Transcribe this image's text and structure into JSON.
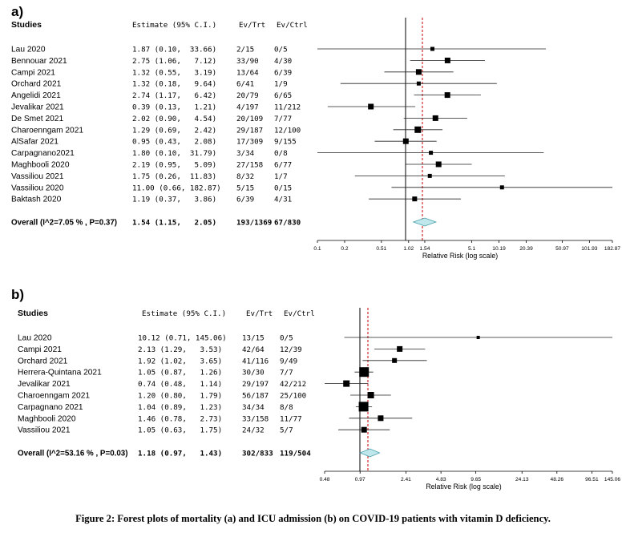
{
  "caption": "Figure 2: Forest plots of mortality (a) and ICU admission (b) on COVID-19 patients with vitamin D deficiency.",
  "chart_data": [
    {
      "type": "forest",
      "panel": "a)",
      "header": {
        "studies": "Studies",
        "estimate": "Estimate (95% C.I.)",
        "ev_trt": "Ev/Trt",
        "ev_ctrl": "Ev/Ctrl"
      },
      "xlabel": "Relative Risk (log scale)",
      "xscale": "log",
      "xlim": [
        0.1,
        182.87
      ],
      "ticks": [
        "0.1",
        "0.2",
        "0.51",
        "1.02",
        "1.54",
        "5.1",
        "10.19",
        "20.39",
        "50.97",
        "101.93",
        "182.87"
      ],
      "reference_line": 1,
      "pooled_line": 1.54,
      "studies": [
        {
          "name": "Lau 2020",
          "rr": 1.87,
          "lo": 0.1,
          "hi": 33.66,
          "ci_text": "1.87 (0.10,  33.66)",
          "ev_trt": "2/15",
          "ev_ctrl": "0/5",
          "box": 5
        },
        {
          "name": "Bennouar 2021",
          "rr": 2.75,
          "lo": 1.06,
          "hi": 7.12,
          "ci_text": "2.75 (1.06,   7.12)",
          "ev_trt": "33/90",
          "ev_ctrl": "4/30",
          "box": 7
        },
        {
          "name": "Campi 2021",
          "rr": 1.32,
          "lo": 0.55,
          "hi": 3.19,
          "ci_text": "1.32 (0.55,   3.19)",
          "ev_trt": "13/64",
          "ev_ctrl": "6/39",
          "box": 7
        },
        {
          "name": "Orchard 2021",
          "rr": 1.32,
          "lo": 0.18,
          "hi": 9.64,
          "ci_text": "1.32 (0.18,   9.64)",
          "ev_trt": "6/41",
          "ev_ctrl": "1/9",
          "box": 5
        },
        {
          "name": "Angelidi 2021",
          "rr": 2.74,
          "lo": 1.17,
          "hi": 6.42,
          "ci_text": "2.74 (1.17,   6.42)",
          "ev_trt": "20/79",
          "ev_ctrl": "6/65",
          "box": 7
        },
        {
          "name": "Jevalikar 2021",
          "rr": 0.39,
          "lo": 0.13,
          "hi": 1.21,
          "ci_text": "0.39 (0.13,   1.21)",
          "ev_trt": "4/197",
          "ev_ctrl": "11/212",
          "box": 7
        },
        {
          "name": "De Smet 2021",
          "rr": 2.02,
          "lo": 0.9,
          "hi": 4.54,
          "ci_text": "2.02 (0.90,   4.54)",
          "ev_trt": "20/109",
          "ev_ctrl": "7/77",
          "box": 7
        },
        {
          "name": "Charoenngam 2021",
          "rr": 1.29,
          "lo": 0.69,
          "hi": 2.42,
          "ci_text": "1.29 (0.69,   2.42)",
          "ev_trt": "29/187",
          "ev_ctrl": "12/100",
          "box": 8
        },
        {
          "name": "AlSafar 2021",
          "rr": 0.95,
          "lo": 0.43,
          "hi": 2.08,
          "ci_text": "0.95 (0.43,   2.08)",
          "ev_trt": "17/309",
          "ev_ctrl": "9/155",
          "box": 7
        },
        {
          "name": "Carpagnano2021",
          "rr": 1.8,
          "lo": 0.1,
          "hi": 31.79,
          "ci_text": "1.80 (0.10,  31.79)",
          "ev_trt": "3/34",
          "ev_ctrl": "0/8",
          "box": 5
        },
        {
          "name": "Maghbooli 2020",
          "rr": 2.19,
          "lo": 0.95,
          "hi": 5.09,
          "ci_text": "2.19 (0.95,   5.09)",
          "ev_trt": "27/158",
          "ev_ctrl": "6/77",
          "box": 7
        },
        {
          "name": "Vassiliou 2021",
          "rr": 1.75,
          "lo": 0.26,
          "hi": 11.83,
          "ci_text": "1.75 (0.26,  11.83)",
          "ev_trt": "8/32",
          "ev_ctrl": "1/7",
          "box": 5
        },
        {
          "name": "Vassiliou 2020",
          "rr": 11.0,
          "lo": 0.66,
          "hi": 182.87,
          "ci_text": "11.00 (0.66, 182.87)",
          "ev_trt": "5/15",
          "ev_ctrl": "0/15",
          "box": 5
        },
        {
          "name": "Baktash 2020",
          "rr": 1.19,
          "lo": 0.37,
          "hi": 3.86,
          "ci_text": "1.19 (0.37,   3.86)",
          "ev_trt": "6/39",
          "ev_ctrl": "4/31",
          "box": 6
        }
      ],
      "overall": {
        "label": "Overall (I^2=7.05 % , P=0.37)",
        "rr": 1.54,
        "lo": 1.15,
        "hi": 2.05,
        "ci_text": "1.54 (1.15,   2.05)",
        "ev_trt": "193/1369",
        "ev_ctrl": "67/830"
      }
    },
    {
      "type": "forest",
      "panel": "b)",
      "header": {
        "studies": "Studies",
        "estimate": "Estimate (95% C.I.)",
        "ev_trt": "Ev/Trt",
        "ev_ctrl": "Ev/Ctrl"
      },
      "xlabel": "Relative Risk (log scale)",
      "xscale": "log",
      "xlim": [
        0.48,
        145.06
      ],
      "ticks": [
        "0.48",
        "0.97",
        "2.41",
        "4.83",
        "9.65",
        "24.13",
        "48.26",
        "96.51",
        "145.06"
      ],
      "reference_line": 1,
      "pooled_line": 1.18,
      "studies": [
        {
          "name": "Lau 2020",
          "rr": 10.12,
          "lo": 0.71,
          "hi": 145.06,
          "ci_text": "10.12 (0.71, 145.06)",
          "ev_trt": "13/15",
          "ev_ctrl": "0/5",
          "box": 4
        },
        {
          "name": "Campi 2021",
          "rr": 2.13,
          "lo": 1.29,
          "hi": 3.53,
          "ci_text": "2.13 (1.29,   3.53)",
          "ev_trt": "42/64",
          "ev_ctrl": "12/39",
          "box": 7
        },
        {
          "name": "Orchard 2021",
          "rr": 1.92,
          "lo": 1.02,
          "hi": 3.65,
          "ci_text": "1.92 (1.02,   3.65)",
          "ev_trt": "41/116",
          "ev_ctrl": "9/49",
          "box": 6
        },
        {
          "name": "Herrera-Quintana 2021",
          "rr": 1.05,
          "lo": 0.87,
          "hi": 1.26,
          "ci_text": "1.05 (0.87,   1.26)",
          "ev_trt": "30/30",
          "ev_ctrl": "7/7",
          "box": 12
        },
        {
          "name": "Jevalikar 2021",
          "rr": 0.74,
          "lo": 0.48,
          "hi": 1.14,
          "ci_text": "0.74 (0.48,   1.14)",
          "ev_trt": "29/197",
          "ev_ctrl": "42/212",
          "box": 8
        },
        {
          "name": "Charoenngam 2021",
          "rr": 1.2,
          "lo": 0.8,
          "hi": 1.79,
          "ci_text": "1.20 (0.80,   1.79)",
          "ev_trt": "56/187",
          "ev_ctrl": "25/100",
          "box": 8
        },
        {
          "name": "Carpagnano 2021",
          "rr": 1.04,
          "lo": 0.89,
          "hi": 1.23,
          "ci_text": "1.04 (0.89,   1.23)",
          "ev_trt": "34/34",
          "ev_ctrl": "8/8",
          "box": 12
        },
        {
          "name": "Maghbooli 2020",
          "rr": 1.46,
          "lo": 0.78,
          "hi": 2.73,
          "ci_text": "1.46 (0.78,   2.73)",
          "ev_trt": "33/158",
          "ev_ctrl": "11/77",
          "box": 7
        },
        {
          "name": "Vassiliou 2021",
          "rr": 1.05,
          "lo": 0.63,
          "hi": 1.75,
          "ci_text": "1.05 (0.63,   1.75)",
          "ev_trt": "24/32",
          "ev_ctrl": "5/7",
          "box": 7
        }
      ],
      "overall": {
        "label": "Overall (I^2=53.16 % , P=0.03)",
        "rr": 1.18,
        "lo": 0.97,
        "hi": 1.43,
        "ci_text": "1.18 (0.97,   1.43)",
        "ev_trt": "302/833",
        "ev_ctrl": "119/504"
      }
    }
  ]
}
